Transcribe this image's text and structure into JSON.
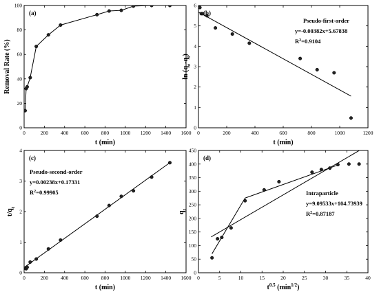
{
  "chart_data": [
    {
      "panel": "(a)",
      "type": "line",
      "xlabel": "t (min)",
      "ylabel": "Removal Rate (%)",
      "xlim": [
        0,
        1600
      ],
      "ylim": [
        0,
        100
      ],
      "xticks": [
        0,
        200,
        400,
        600,
        800,
        1000,
        1200,
        1400,
        1600
      ],
      "yticks": [
        0,
        20,
        40,
        60,
        80,
        100
      ],
      "series": [
        {
          "x": [
            10,
            20,
            30,
            60,
            120,
            240,
            360,
            720,
            840,
            960,
            1080,
            1260,
            1440
          ],
          "y": [
            14,
            32,
            33.5,
            41,
            66.5,
            76,
            84,
            92.5,
            95.5,
            96,
            99.5,
            100,
            100
          ]
        }
      ],
      "annotations": [],
      "grid": false
    },
    {
      "panel": "(b)",
      "type": "scatter",
      "xlabel": "t (min)",
      "ylabel": "ln (q_e-q_t)",
      "xlim": [
        0,
        1200
      ],
      "ylim": [
        0,
        6
      ],
      "xticks": [
        0,
        200,
        400,
        600,
        800,
        1000,
        1200
      ],
      "yticks": [
        0,
        1,
        2,
        3,
        4,
        5,
        6
      ],
      "series": [
        {
          "x": [
            10,
            20,
            30,
            60,
            120,
            240,
            360,
            720,
            840,
            960,
            1080
          ],
          "y": [
            5.9,
            5.6,
            5.6,
            5.5,
            4.9,
            4.6,
            4.15,
            3.4,
            2.85,
            2.7,
            0.48
          ]
        }
      ],
      "fit": {
        "slope": -0.00382,
        "intercept": 5.67838,
        "x_range": [
          0,
          1080
        ]
      },
      "annotations": [
        "Pseudo-first-order",
        "y=-0.00382x+5.67838",
        "R2=0.9104"
      ],
      "grid": false
    },
    {
      "panel": "(c)",
      "type": "scatter",
      "xlabel": "t (min)",
      "ylabel": "t/q_t",
      "xlim": [
        0,
        1600
      ],
      "ylim": [
        0,
        4
      ],
      "xticks": [
        0,
        200,
        400,
        600,
        800,
        1000,
        1200,
        1400,
        1600
      ],
      "yticks": [
        0,
        1,
        2,
        3,
        4
      ],
      "series": [
        {
          "x": [
            10,
            20,
            30,
            60,
            120,
            240,
            360,
            720,
            840,
            960,
            1080,
            1260,
            1440
          ],
          "y": [
            0.15,
            0.13,
            0.18,
            0.35,
            0.45,
            0.78,
            1.07,
            1.85,
            2.2,
            2.5,
            2.68,
            3.13,
            3.6
          ]
        }
      ],
      "fit": {
        "slope": 0.00238,
        "intercept": 0.17331,
        "x_range": [
          0,
          1440
        ]
      },
      "annotations": [
        "Pseudo-second-order",
        "y=0.00238x+0.17331",
        "R2=0.99905"
      ],
      "grid": false
    },
    {
      "panel": "(d)",
      "type": "scatter",
      "xlabel": "t0.5 (min1/2)",
      "ylabel": "q_t",
      "xlim": [
        0,
        40
      ],
      "ylim": [
        0,
        450
      ],
      "xticks": [
        0,
        5,
        10,
        15,
        20,
        25,
        30,
        35,
        40
      ],
      "yticks": [
        0,
        50,
        100,
        150,
        200,
        250,
        300,
        350,
        400,
        450
      ],
      "series": [
        {
          "x": [
            3.2,
            4.5,
            5.5,
            7.7,
            11,
            15.5,
            19,
            26.8,
            29,
            31,
            32.9,
            35.5,
            37.9
          ],
          "y": [
            55,
            125,
            130,
            165,
            265,
            305,
            335,
            370,
            380,
            385,
            398,
            400,
            400
          ]
        }
      ],
      "fit": {
        "slope": 9.09533,
        "intercept": 104.73939,
        "x_range": [
          3,
          39
        ]
      },
      "segments": [
        {
          "x": [
            3.2,
            11
          ],
          "y": [
            70,
            275
          ]
        },
        {
          "x": [
            11,
            33.2
          ],
          "y": [
            275,
            398
          ]
        }
      ],
      "annotations": [
        "Intraparticle",
        "y=9.09533x+104.73939",
        "R2=0.87187"
      ],
      "grid": false
    }
  ]
}
